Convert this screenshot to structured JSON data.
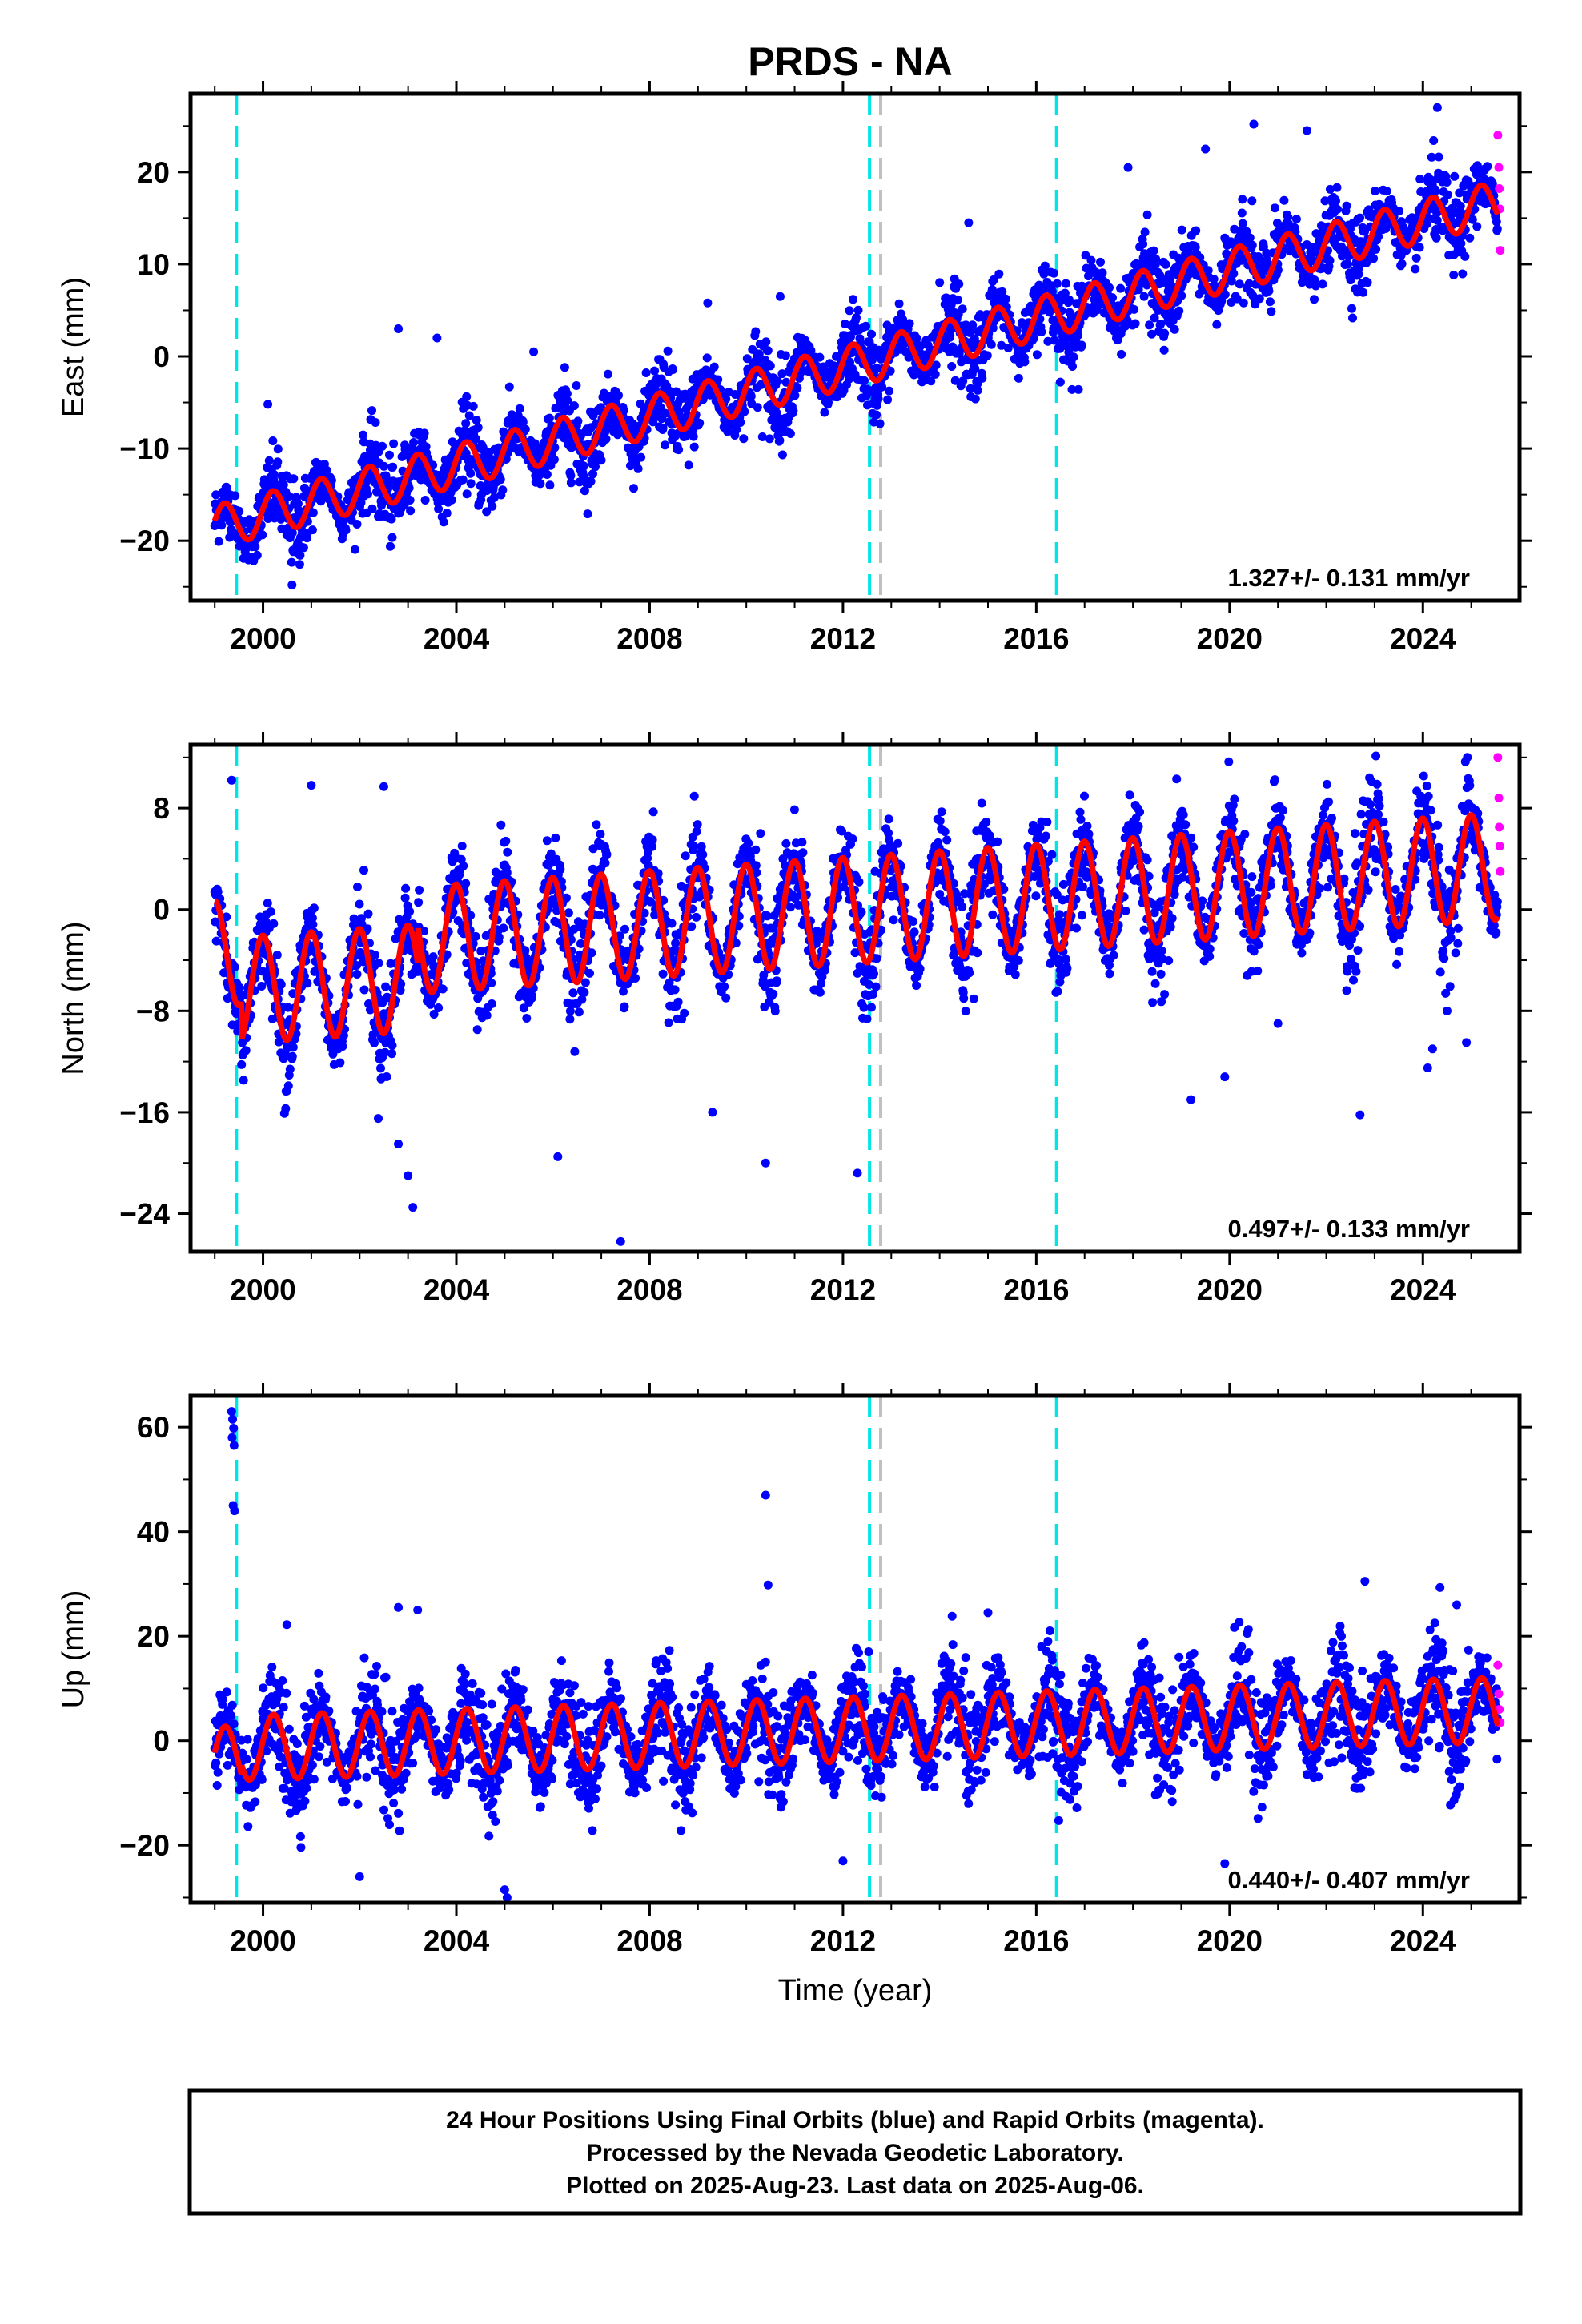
{
  "title": "PRDS - NA",
  "footer": {
    "lines": [
      "24 Hour Positions Using Final Orbits (blue) and Rapid Orbits (magenta).",
      "Processed by the Nevada Geodetic Laboratory.",
      "Plotted on 2025-Aug-23. Last data on 2025-Aug-06."
    ]
  },
  "chart_data": [
    {
      "type": "scatter",
      "ylabel": "East (mm)",
      "xlim": [
        1998.5,
        2026.0
      ],
      "ylim": [
        -26.5,
        28.5
      ],
      "xticks": [
        2000,
        2004,
        2008,
        2012,
        2016,
        2020,
        2024
      ],
      "yticks": [
        -20,
        -10,
        0,
        10,
        20
      ],
      "rate_label": "1.327+/- 0.131 mm/yr",
      "events": [
        {
          "x": 1999.45,
          "color": "#00e5e5"
        },
        {
          "x": 2012.55,
          "color": "#00e5e5"
        },
        {
          "x": 2012.78,
          "color": "#c0c0c0"
        },
        {
          "x": 2016.42,
          "color": "#00e5e5"
        }
      ],
      "model": {
        "t0": 1999.0,
        "y0": -18.5,
        "slope": 1.327,
        "amp": 2.3,
        "phase": 0.3,
        "offsets": [
          {
            "x": 2003.2,
            "dy": 0.0
          }
        ]
      },
      "noise": 1.8,
      "final_orbits_color": "#0000ff",
      "rapid_orbits_color": "#ff00ff",
      "fit_color": "#ff0000",
      "outliers": [
        [
          2002.8,
          3.0
        ],
        [
          2003.6,
          2.0
        ],
        [
          2005.6,
          0.5
        ],
        [
          2009.2,
          5.8
        ],
        [
          2010.7,
          6.5
        ],
        [
          2014.0,
          8.0
        ],
        [
          2014.6,
          14.5
        ],
        [
          2019.5,
          22.5
        ],
        [
          2020.5,
          25.2
        ],
        [
          2021.6,
          24.5
        ],
        [
          2024.3,
          27.0
        ],
        [
          2000.1,
          -5.2
        ],
        [
          2000.6,
          -24.8
        ],
        [
          2017.9,
          20.5
        ]
      ],
      "rapid": [
        [
          2025.55,
          24.0
        ],
        [
          2025.57,
          20.5
        ],
        [
          2025.58,
          18.2
        ],
        [
          2025.59,
          16.0
        ],
        [
          2025.6,
          11.5
        ]
      ]
    },
    {
      "type": "scatter",
      "ylabel": "North (mm)",
      "xlim": [
        1998.5,
        2026.0
      ],
      "ylim": [
        -27.0,
        13.0
      ],
      "xticks": [
        2000,
        2004,
        2008,
        2012,
        2016,
        2020,
        2024
      ],
      "yticks": [
        -24,
        -16,
        -8,
        0,
        8
      ],
      "rate_label": "0.497+/- 0.133 mm/yr",
      "events": [
        {
          "x": 1999.45,
          "color": "#00e5e5"
        },
        {
          "x": 2012.55,
          "color": "#00e5e5"
        },
        {
          "x": 2012.78,
          "color": "#c0c0c0"
        },
        {
          "x": 2016.42,
          "color": "#00e5e5"
        }
      ],
      "model": {
        "t0": 1999.0,
        "y0": -3.5,
        "slope": 0.26,
        "amp": 4.2,
        "phase": 1.6,
        "offsets": [
          {
            "x": 1999.55,
            "dy": -3.0
          },
          {
            "x": 2003.2,
            "dy": 3.0
          }
        ]
      },
      "noise": 1.7,
      "final_orbits_color": "#0000ff",
      "rapid_orbits_color": "#ff00ff",
      "fit_color": "#ff0000",
      "outliers": [
        [
          1999.35,
          10.2
        ],
        [
          2001.0,
          9.8
        ],
        [
          2002.5,
          9.7
        ],
        [
          2002.8,
          -18.5
        ],
        [
          2003.0,
          -21.0
        ],
        [
          2003.1,
          -23.5
        ],
        [
          2006.1,
          -19.5
        ],
        [
          2007.4,
          -26.2
        ],
        [
          2009.3,
          -16.0
        ],
        [
          2010.4,
          -20.0
        ],
        [
          2012.3,
          -20.8
        ],
        [
          2019.9,
          -13.2
        ],
        [
          2022.7,
          -16.2
        ],
        [
          2024.1,
          -12.5
        ],
        [
          2024.2,
          -11.0
        ],
        [
          2024.5,
          -8.0
        ],
        [
          2024.9,
          -10.5
        ],
        [
          2019.2,
          -15.0
        ],
        [
          2021.0,
          -9.0
        ]
      ],
      "rapid": [
        [
          2025.55,
          12.0
        ],
        [
          2025.57,
          8.8
        ],
        [
          2025.58,
          6.5
        ],
        [
          2025.59,
          5.0
        ],
        [
          2025.6,
          3.0
        ]
      ]
    },
    {
      "type": "scatter",
      "ylabel": "Up (mm)",
      "xticks": [
        2000,
        2004,
        2008,
        2012,
        2016,
        2020,
        2024
      ],
      "xlabel": "Time (year)",
      "xlim": [
        1998.5,
        2026.0
      ],
      "ylim": [
        -31.0,
        66.0
      ],
      "yticks": [
        -20,
        0,
        20,
        40,
        60
      ],
      "rate_label": "0.440+/- 0.407 mm/yr",
      "events": [
        {
          "x": 1999.45,
          "color": "#00e5e5"
        },
        {
          "x": 2012.55,
          "color": "#00e5e5"
        },
        {
          "x": 2012.78,
          "color": "#c0c0c0"
        },
        {
          "x": 2016.42,
          "color": "#00e5e5"
        }
      ],
      "model": {
        "t0": 1999.0,
        "y0": -3.5,
        "slope": 0.28,
        "amp": 6.2,
        "phase": 0.2,
        "offsets": [
          {
            "x": 1999.55,
            "dy": 2.0
          }
        ]
      },
      "noise": 4.2,
      "final_orbits_color": "#0000ff",
      "rapid_orbits_color": "#ff00ff",
      "fit_color": "#ff0000",
      "outliers": [
        [
          1999.35,
          63.0
        ],
        [
          1999.37,
          61.5
        ],
        [
          1999.39,
          59.8
        ],
        [
          1999.36,
          58.0
        ],
        [
          1999.4,
          56.5
        ],
        [
          1999.38,
          45.0
        ],
        [
          1999.41,
          44.0
        ],
        [
          2010.4,
          47.0
        ],
        [
          2010.45,
          29.8
        ],
        [
          2005.0,
          -28.5
        ],
        [
          2005.05,
          -30.0
        ],
        [
          2002.0,
          -26.0
        ],
        [
          2019.9,
          -23.5
        ],
        [
          2022.8,
          30.5
        ],
        [
          2024.7,
          26.0
        ],
        [
          2002.8,
          25.5
        ],
        [
          2003.2,
          25.0
        ],
        [
          2012.0,
          -23.0
        ],
        [
          2015.0,
          24.5
        ]
      ],
      "rapid": [
        [
          2025.55,
          14.5
        ],
        [
          2025.57,
          9.0
        ],
        [
          2025.58,
          6.0
        ],
        [
          2025.6,
          3.5
        ]
      ]
    }
  ]
}
